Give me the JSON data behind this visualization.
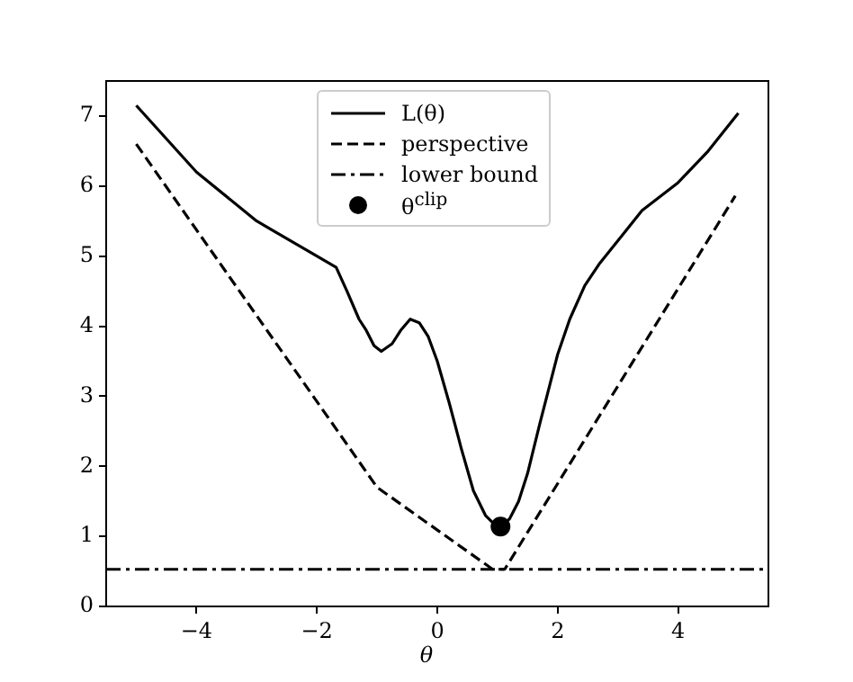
{
  "chart_data": {
    "type": "line",
    "xlabel": "θ",
    "xlim": [
      -5.5,
      5.5
    ],
    "ylim": [
      0,
      7.5
    ],
    "xticks": [
      -4,
      -2,
      0,
      2,
      4
    ],
    "yticks": [
      0,
      1,
      2,
      3,
      4,
      5,
      6,
      7
    ],
    "grid": false,
    "legend": "top",
    "series": [
      {
        "name": "L(θ)",
        "color": "#000000",
        "line_style": "solid",
        "marker": "none",
        "x": [
          -5,
          -4,
          -3,
          -2,
          -1.68,
          -1.5,
          -1.3,
          -1.18,
          -1.05,
          -0.93,
          -0.75,
          -0.6,
          -0.45,
          -0.3,
          -0.15,
          0,
          0.2,
          0.4,
          0.6,
          0.8,
          0.95,
          1.05,
          1.2,
          1.35,
          1.5,
          1.7,
          2,
          2.2,
          2.45,
          2.7,
          3,
          3.4,
          4,
          4.5,
          5
        ],
        "values": [
          7.15,
          6.2,
          5.5,
          5.0,
          4.84,
          4.5,
          4.1,
          3.94,
          3.72,
          3.64,
          3.75,
          3.95,
          4.1,
          4.05,
          3.85,
          3.5,
          2.9,
          2.25,
          1.65,
          1.3,
          1.17,
          1.14,
          1.25,
          1.5,
          1.9,
          2.6,
          3.6,
          4.1,
          4.58,
          4.9,
          5.22,
          5.65,
          6.05,
          6.5,
          7.04
        ]
      },
      {
        "name": "perspective",
        "color": "#000000",
        "line_style": "dashed",
        "marker": "none",
        "x": [
          -5,
          -1,
          0.92,
          1.12,
          4.95
        ],
        "values": [
          6.6,
          1.7,
          0.53,
          0.53,
          5.86
        ]
      },
      {
        "name": "lower bound",
        "color": "#000000",
        "line_style": "dashdot",
        "marker": "none",
        "x": [
          -5.5,
          5.5
        ],
        "values": [
          0.53,
          0.53
        ]
      },
      {
        "name": "θ$^{clip}$",
        "type": "scatter",
        "color": "#000000",
        "marker": "circle",
        "x": [
          1.05
        ],
        "values": [
          1.14
        ]
      }
    ]
  }
}
